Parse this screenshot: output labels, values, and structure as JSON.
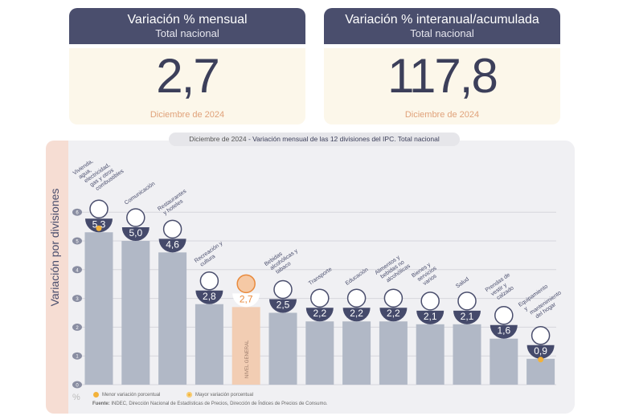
{
  "cards": [
    {
      "title": "Variación % mensual",
      "subtitle": "Total nacional",
      "value": "2,7",
      "date": "Diciembre de 2024"
    },
    {
      "title": "Variación % interanual/acumulada",
      "subtitle": "Total nacional",
      "value": "117,8",
      "date": "Diciembre de 2024"
    }
  ],
  "chart_data": {
    "type": "bar",
    "title_date": "Diciembre de 2024",
    "title": " - Variación mensual de las 12 divisiones del IPC. Total nacional",
    "ylabel": "Variación por divisiones",
    "yunit": "%",
    "ylim": [
      0,
      6
    ],
    "yticks": [
      "0",
      "1",
      "2",
      "3",
      "4",
      "5",
      "6"
    ],
    "categories": [
      "Vivienda, agua, electricidad, gas y otros combustibles",
      "Comunicación",
      "Restaurantes y hoteles",
      "Recreación y cultura",
      "Nivel general",
      "Bebidas alcohólicas y tabaco",
      "Transporte",
      "Educación",
      "Alimentos y bebidas no alcohólicas",
      "Bienes y servicios varios",
      "Salud",
      "Prendas de vestir y calzado",
      "Equipamiento y mantenimiento del hogar"
    ],
    "values": [
      5.3,
      5.0,
      4.6,
      2.8,
      2.7,
      2.5,
      2.2,
      2.2,
      2.2,
      2.1,
      2.1,
      1.6,
      0.9
    ],
    "value_labels": [
      "5,3",
      "5,0",
      "4,6",
      "2,8",
      "2,7",
      "2,5",
      "2,2",
      "2,2",
      "2,2",
      "2,1",
      "2,1",
      "1,6",
      "0,9"
    ],
    "general_bar_label": "NIVEL GENERAL",
    "highlight_index": 4,
    "max_index": 0,
    "min_index": 12,
    "colors": {
      "bar": "#b1b8c6",
      "general": "#f2cdb3",
      "badge": "#454a6b",
      "marker": "#f3b23a",
      "general_text": "#e98a3c"
    },
    "legend": [
      "Menor variación porcentual",
      "Mayor variación porcentual"
    ],
    "source_bold": "Fuente:",
    "source": " INDEC, Dirección Nacional de Estadísticas de Precios, Dirección de Índices de Precios de Consumo."
  }
}
